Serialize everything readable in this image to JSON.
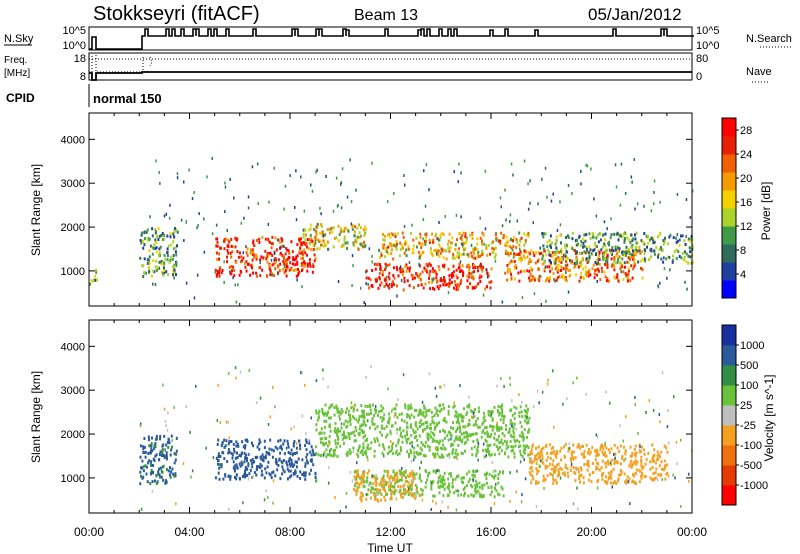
{
  "header": {
    "radar": "Stokkseyri (fitACF)",
    "beam": "Beam 13",
    "date": "05/Jan/2012"
  },
  "strips": {
    "nsky_label": "N.Sky",
    "freq_label": "Freq.",
    "freq_unit": "[MHz]",
    "cpid_label": "CPID",
    "cpid_value": "normal 150",
    "left_ticks_nsky": [
      "10^5",
      "10^0"
    ],
    "left_ticks_freq": [
      "18",
      "8"
    ],
    "right_ticks_nsky": [
      "10^5",
      "10^0"
    ],
    "right_ticks_freq": [
      "80",
      "0"
    ],
    "right_legend_nsearch": "N.Search",
    "right_legend_nave": "Nave"
  },
  "colors": {
    "power": [
      "#0000ff",
      "#1e40a0",
      "#2e6b5b",
      "#3f9b48",
      "#a8d32a",
      "#f5d000",
      "#f59b00",
      "#f06000",
      "#e62000",
      "#ff0000"
    ],
    "velocity": [
      "#1a2fa0",
      "#2a5a9a",
      "#2f8f44",
      "#69c23a",
      "#c0c0c0",
      "#f4a020",
      "#f07010",
      "#e63a00",
      "#ff0000"
    ]
  },
  "chart_data": [
    {
      "type": "heatmap",
      "title": "",
      "xlabel": "Time UT",
      "ylabel": "Slant Range [km]",
      "xticks": [
        "00:00",
        "04:00",
        "08:00",
        "12:00",
        "16:00",
        "20:00",
        "00:00"
      ],
      "yticks": [
        "1000",
        "2000",
        "3000",
        "4000"
      ],
      "xlim": [
        0,
        24
      ],
      "ylim": [
        200,
        4600
      ],
      "colorbar": {
        "label": "Power [dB]",
        "ticks": [
          "4",
          "8",
          "12",
          "16",
          "20",
          "24",
          "28"
        ],
        "range": [
          0,
          30
        ]
      },
      "echo_bands": [
        {
          "t": [
            0.0,
            0.3
          ],
          "range": [
            700,
            1100
          ],
          "value": 12
        },
        {
          "t": [
            2.0,
            3.5
          ],
          "range": [
            900,
            2000
          ],
          "value": 10
        },
        {
          "t": [
            5.0,
            9.0
          ],
          "range": [
            900,
            1800
          ],
          "value": 26
        },
        {
          "t": [
            8.5,
            11.0
          ],
          "range": [
            1500,
            2100
          ],
          "value": 16
        },
        {
          "t": [
            11.0,
            16.0
          ],
          "range": [
            600,
            1200
          ],
          "value": 26
        },
        {
          "t": [
            11.5,
            17.5
          ],
          "range": [
            1300,
            1900
          ],
          "value": 18
        },
        {
          "t": [
            16.5,
            22.0
          ],
          "range": [
            800,
            1500
          ],
          "value": 22
        },
        {
          "t": [
            18.0,
            24.0
          ],
          "range": [
            1200,
            1900
          ],
          "value": 10
        }
      ]
    },
    {
      "type": "heatmap",
      "title": "",
      "xlabel": "Time UT",
      "ylabel": "Slant Range [km]",
      "xticks": [
        "00:00",
        "04:00",
        "08:00",
        "12:00",
        "16:00",
        "20:00",
        "00:00"
      ],
      "yticks": [
        "1000",
        "2000",
        "3000",
        "4000"
      ],
      "xlim": [
        0,
        24
      ],
      "ylim": [
        200,
        4600
      ],
      "colorbar": {
        "label": "Velocity [m s^-1]",
        "ticks": [
          "1000",
          "500",
          "100",
          "25",
          "-25",
          "-100",
          "-500",
          "-1000"
        ],
        "range": [
          -1000,
          1000
        ]
      },
      "echo_bands": [
        {
          "t": [
            2.0,
            3.5
          ],
          "range": [
            900,
            2000
          ],
          "value": 150
        },
        {
          "t": [
            5.0,
            9.0
          ],
          "range": [
            1000,
            1900
          ],
          "value": 300
        },
        {
          "t": [
            9.0,
            17.5
          ],
          "range": [
            1500,
            2700
          ],
          "value": 0
        },
        {
          "t": [
            10.5,
            16.5
          ],
          "range": [
            600,
            1200
          ],
          "value": 0
        },
        {
          "t": [
            10.5,
            13.0
          ],
          "range": [
            500,
            1200
          ],
          "value": -200
        },
        {
          "t": [
            17.5,
            23.0
          ],
          "range": [
            900,
            1800
          ],
          "value": -300
        }
      ]
    }
  ]
}
